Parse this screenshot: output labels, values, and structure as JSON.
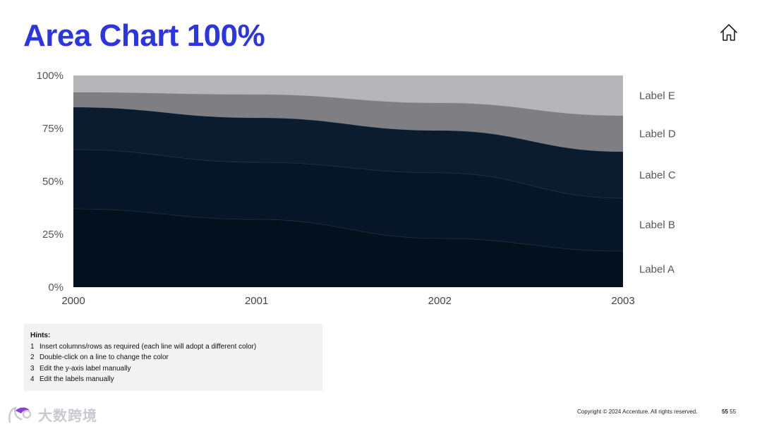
{
  "slide": {
    "title": "Area Chart 100%",
    "page_number_bold": "55",
    "page_number": "55",
    "copyright": "Copyright © 2024 Accenture. All rights reserved.",
    "home_icon": "home-icon",
    "watermark_text": "大数跨境",
    "colors": {
      "title": "#2b35e0",
      "hint_bg": "#f2f2f2"
    }
  },
  "hints": {
    "title": "Hints:",
    "items": [
      {
        "num": "1",
        "text": "Insert columns/rows as required (each line will adopt a different color)"
      },
      {
        "num": "2",
        "text": "Double-click on a line to change the color"
      },
      {
        "num": "3",
        "text": "Edit the y-axis label manually"
      },
      {
        "num": "4",
        "text": "Edit the labels manually"
      }
    ]
  },
  "chart_data": {
    "type": "area",
    "stacked": "100%",
    "title": "",
    "xlabel": "",
    "ylabel": "",
    "ylim": [
      0,
      100
    ],
    "y_ticks": [
      "0%",
      "25%",
      "50%",
      "75%",
      "100%"
    ],
    "x": [
      "2000",
      "2001",
      "2002",
      "2003"
    ],
    "grid": false,
    "legend": "right, direct labels",
    "series": [
      {
        "name": "Label A",
        "values": [
          37,
          32,
          23,
          17
        ],
        "color": "#03101d"
      },
      {
        "name": "Label B",
        "values": [
          28,
          27,
          31,
          25
        ],
        "color": "#061628"
      },
      {
        "name": "Label C",
        "values": [
          20,
          21,
          20,
          22
        ],
        "color": "#0a1c2e"
      },
      {
        "name": "Label D",
        "values": [
          7,
          11,
          13,
          17
        ],
        "color": "#7f7f83"
      },
      {
        "name": "Label E",
        "values": [
          8,
          9,
          13,
          19
        ],
        "color": "#b6b6b8"
      }
    ]
  }
}
